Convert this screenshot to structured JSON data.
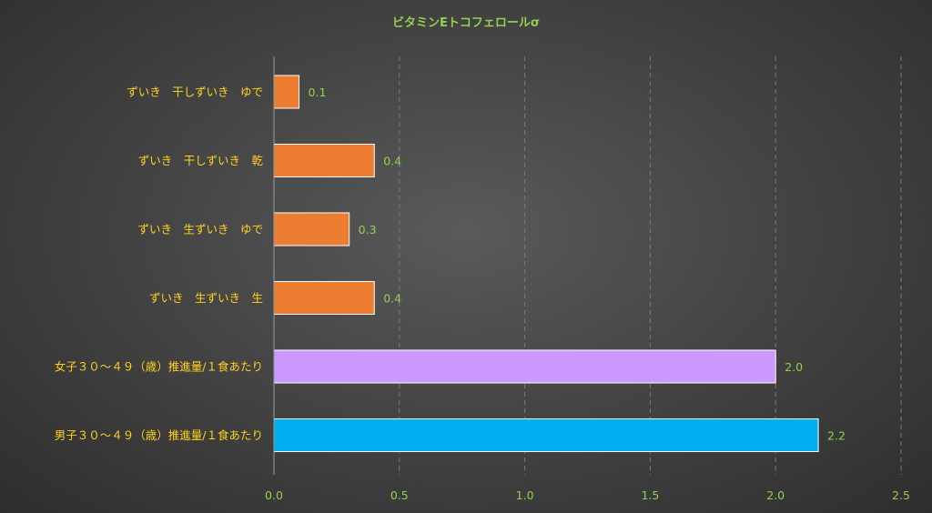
{
  "chart_data": {
    "type": "bar",
    "orientation": "horizontal",
    "title": "ビタミンEトコフェロールσ",
    "categories": [
      "ずいき　干しずいき　ゆで",
      "ずいき　干しずいき　乾",
      "ずいき　生ずいき　ゆで",
      "ずいき　生ずいき　生",
      "女子３０～４９（歳）推進量/１食あたり",
      "男子３０～４９（歳）推進量/１食あたり"
    ],
    "values": [
      0.1,
      0.4,
      0.3,
      0.4,
      2.0,
      2.17
    ],
    "data_labels": [
      "0.1",
      "0.4",
      "0.3",
      "0.4",
      "2.0",
      "2.2"
    ],
    "bar_colors": [
      "#ed7d31",
      "#ed7d31",
      "#ed7d31",
      "#ed7d31",
      "#cc99ff",
      "#00b0f0"
    ],
    "xlim": [
      0,
      2.5
    ],
    "xticks": [
      "0.0",
      "0.5",
      "1.0",
      "1.5",
      "2.0",
      "2.5"
    ],
    "xtick_values": [
      0,
      0.5,
      1.0,
      1.5,
      2.0,
      2.5
    ],
    "grid": true
  }
}
